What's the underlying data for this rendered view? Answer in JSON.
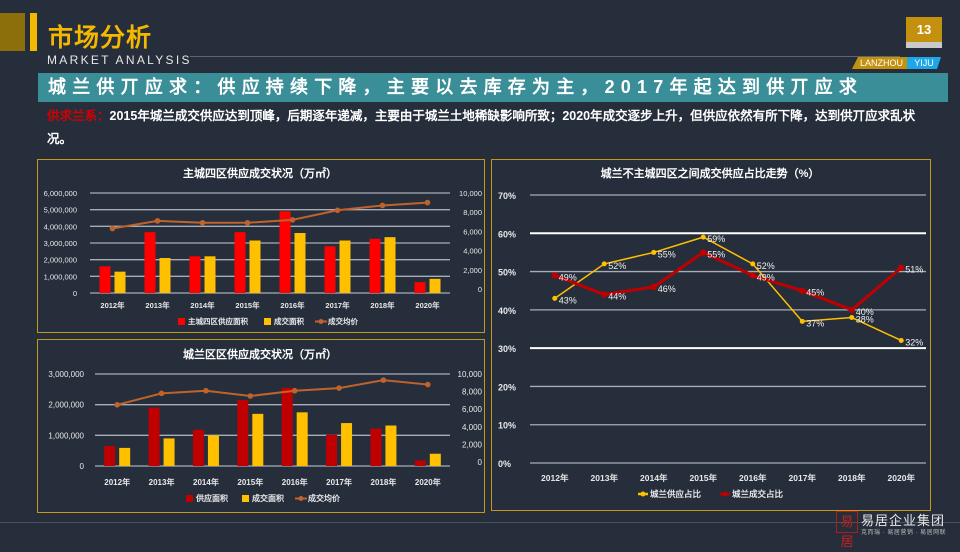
{
  "header": {
    "title_cn": "市场分析",
    "title_en": "MARKET ANALYSIS",
    "page_number": "13",
    "brand_left": "LANZHOU",
    "brand_right": "YIJU"
  },
  "headline": "城兰供丌应求：供应持续下降，主要以去库存为主，2017年起达到供丌应求",
  "summary": {
    "label": "供求兰系：",
    "text": "2015年城兰成交供应达到顶峰，后期逐年递减，主要由于城兰土地稀缺影响所致；2020年成交逐步上升，但供应依然有所下降，达到供丌应求乱状况。"
  },
  "footer": {
    "logo_seal": "易居",
    "company": "易居企业集团",
    "tagline": "克而瑞 · 易居营销 · 易居网联"
  },
  "colors": {
    "background": "#262e3c",
    "gold": "#f5b800",
    "teal": "#3a8e98",
    "red": "#ff0000",
    "dark_red": "#c00000",
    "yellow": "#ffc000",
    "price_line": "#c0622b"
  },
  "chart_data": [
    {
      "type": "bar",
      "title": "主城四区供应成交状况（万㎡）",
      "categories": [
        "2012年",
        "2013年",
        "2014年",
        "2015年",
        "2016年",
        "2017年",
        "2018年",
        "2020年"
      ],
      "series": [
        {
          "name": "主城四区供应面积",
          "axis": "left",
          "kind": "bar",
          "color": "#ff0000",
          "values": [
            1600000,
            3650000,
            2200000,
            3650000,
            4900000,
            2800000,
            3250000,
            650000
          ]
        },
        {
          "name": "成交面积",
          "axis": "left",
          "kind": "bar",
          "color": "#ffc000",
          "values": [
            1280000,
            2100000,
            2200000,
            3150000,
            3600000,
            3150000,
            3350000,
            850000
          ]
        },
        {
          "name": "成交均价",
          "axis": "right",
          "kind": "line",
          "color": "#c0622b",
          "values": [
            6300,
            7100,
            6900,
            6900,
            7200,
            8200,
            8700,
            9000
          ]
        }
      ],
      "ylim": [
        0,
        6000000
      ],
      "yticks": [
        "0",
        "1,000,000",
        "2,000,000",
        "3,000,000",
        "4,000,000",
        "5,000,000",
        "6,000,000"
      ],
      "y2lim": [
        0,
        10000
      ],
      "y2ticks": [
        "0",
        "2,000",
        "4,000",
        "6,000",
        "8,000",
        "10,000"
      ],
      "legend": [
        "主城四区供应面积",
        "成交面积",
        "成交均价"
      ],
      "legend_position": "bottom",
      "grid": true
    },
    {
      "type": "bar",
      "title": "城兰区区供应成交状况（万㎡）",
      "categories": [
        "2012年",
        "2013年",
        "2014年",
        "2015年",
        "2016年",
        "2017年",
        "2018年",
        "2020年"
      ],
      "series": [
        {
          "name": "供应面积",
          "axis": "left",
          "kind": "bar",
          "color": "#c00000",
          "values": [
            650000,
            1900000,
            1180000,
            2150000,
            2550000,
            1020000,
            1220000,
            180000
          ]
        },
        {
          "name": "成交面积",
          "axis": "left",
          "kind": "bar",
          "color": "#ffc000",
          "values": [
            590000,
            900000,
            1000000,
            1700000,
            1750000,
            1400000,
            1320000,
            400000
          ]
        },
        {
          "name": "成交均价",
          "axis": "right",
          "kind": "line",
          "color": "#c0622b",
          "values": [
            6500,
            7800,
            8100,
            7500,
            8100,
            8400,
            9300,
            8800
          ]
        }
      ],
      "ylim": [
        0,
        3000000
      ],
      "yticks": [
        "0",
        "1,000,000",
        "2,000,000",
        "3,000,000"
      ],
      "y2lim": [
        0,
        10000
      ],
      "y2ticks": [
        "0",
        "2,000",
        "4,000",
        "6,000",
        "8,000",
        "10,000"
      ],
      "legend": [
        "供应面积",
        "成交面积",
        "成交均价"
      ],
      "legend_position": "bottom",
      "grid": true
    },
    {
      "type": "line",
      "title": "城兰不主城四区之间成交供应acts占比走势（%）",
      "categories": [
        "2012年",
        "2013年",
        "2014年",
        "2015年",
        "2016年",
        "2017年",
        "2018年",
        "2020年"
      ],
      "series": [
        {
          "name": "城兰供应占比",
          "color": "#ffc000",
          "values": [
            43,
            52,
            55,
            59,
            52,
            37,
            38,
            32
          ],
          "labels": [
            "43%",
            "52%",
            "55%",
            "59%",
            "52%",
            "37%",
            "38%",
            "32%"
          ]
        },
        {
          "name": "城兰成交占比",
          "color": "#c00000",
          "values": [
            49,
            44,
            46,
            55,
            49,
            45,
            40,
            51
          ],
          "labels": [
            "49%",
            "44%",
            "46%",
            "55%",
            "49%",
            "45%",
            "40%",
            "51%"
          ]
        }
      ],
      "ylim": [
        0,
        70
      ],
      "yticks": [
        "0%",
        "10%",
        "20%",
        "30%",
        "40%",
        "50%",
        "60%",
        "70%"
      ],
      "xlabel": "",
      "ylabel": "",
      "legend": [
        "城兰供应占比",
        "城兰成交占比"
      ],
      "legend_position": "bottom",
      "grid": true
    }
  ]
}
